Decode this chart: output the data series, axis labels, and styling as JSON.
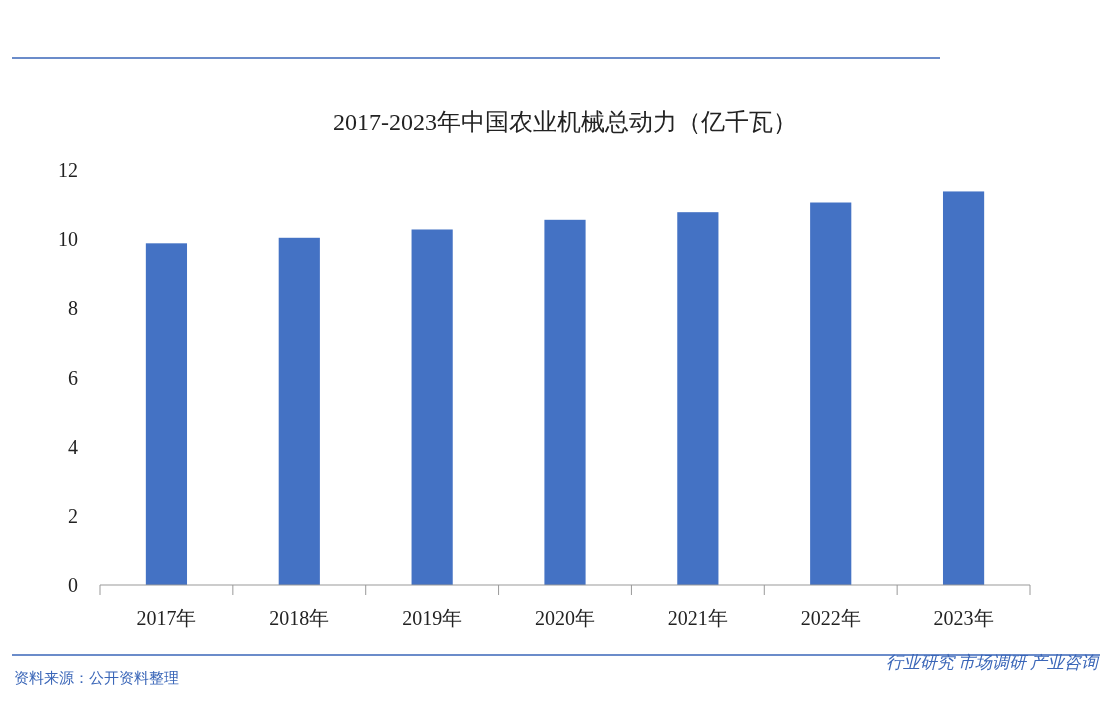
{
  "chart_data": {
    "type": "bar",
    "title": "2017-2023年中国农业机械总动力（亿千瓦）",
    "categories": [
      "2017年",
      "2018年",
      "2019年",
      "2020年",
      "2021年",
      "2022年",
      "2023年"
    ],
    "values": [
      9.88,
      10.04,
      10.28,
      10.56,
      10.78,
      11.06,
      11.38
    ],
    "color": "#4472c4",
    "ylim": [
      0,
      12
    ],
    "yticks": [
      0,
      2,
      4,
      6,
      8,
      10,
      12
    ],
    "grid": false,
    "annotations": [
      "资料来源：公开资料整理",
      "行业研究  市场调研  产业咨询"
    ]
  }
}
